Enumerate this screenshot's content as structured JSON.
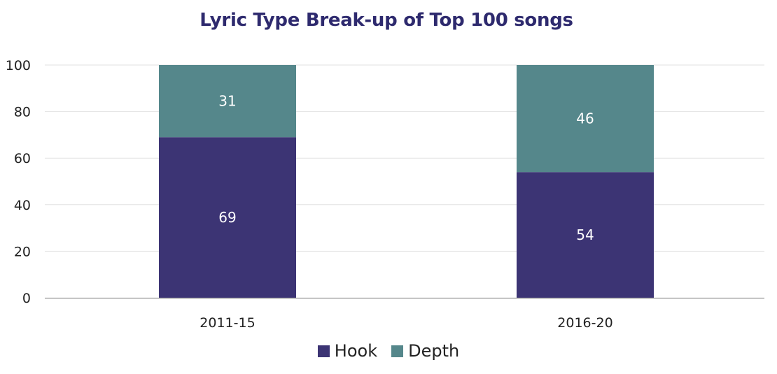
{
  "colors": {
    "hook": "#3c3474",
    "depth": "#55878b",
    "title": "#2e2a6e",
    "grid": "#e2e2e2",
    "axis": "#9a9a9a",
    "label_on_bar": "#ffffff"
  },
  "chart_data": {
    "type": "bar",
    "stacked": true,
    "title": "Lyric Type Break-up of Top 100 songs",
    "xlabel": "",
    "ylabel": "",
    "categories": [
      "2011-15",
      "2016-20"
    ],
    "series": [
      {
        "name": "Hook",
        "values": [
          69,
          54
        ]
      },
      {
        "name": "Depth",
        "values": [
          31,
          46
        ]
      }
    ],
    "ylim": [
      0,
      100
    ],
    "yticks": [
      0,
      20,
      40,
      60,
      80,
      100
    ],
    "grid": true,
    "legend_position": "bottom-center",
    "data_labels": true
  }
}
